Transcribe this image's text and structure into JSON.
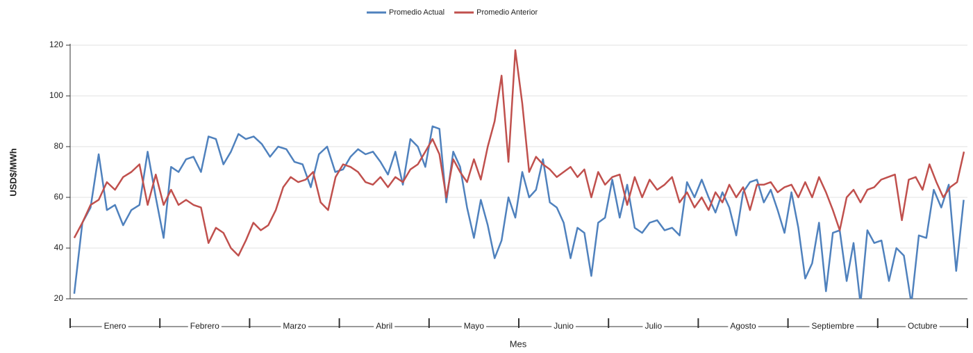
{
  "chart_data": {
    "type": "line",
    "x_label": "Mes",
    "y_label": "USD$/MWh",
    "categories": [
      "Enero",
      "Febrero",
      "Marzo",
      "Abril",
      "Mayo",
      "Junio",
      "Julio",
      "Agosto",
      "Septiembre",
      "Octubre"
    ],
    "ylim": [
      20,
      120
    ],
    "yticks": [
      20,
      40,
      60,
      80,
      100,
      120
    ],
    "grid": true,
    "legend": "top",
    "series": [
      {
        "name": "Promedio Actual",
        "color": "#4f81bd",
        "values": [
          [
            22,
            50,
            56,
            77,
            55,
            57,
            49,
            55,
            57,
            78,
            60
          ],
          [
            44,
            72,
            70,
            75,
            76,
            70,
            84,
            83,
            73,
            78,
            85,
            83
          ],
          [
            84,
            81,
            76,
            80,
            79,
            74,
            73,
            64,
            77,
            80,
            70
          ],
          [
            71,
            76,
            79,
            77,
            78,
            74,
            69,
            78,
            65,
            83,
            80,
            72
          ],
          [
            88,
            87,
            58,
            78,
            72,
            56,
            44,
            59,
            49,
            36,
            43,
            60,
            52
          ],
          [
            70,
            60,
            63,
            75,
            58,
            56,
            50,
            36,
            48,
            46,
            29,
            50,
            52
          ],
          [
            67,
            52,
            65,
            48,
            46,
            50,
            51,
            47,
            48,
            45,
            66,
            60
          ],
          [
            67,
            60,
            54,
            62,
            56,
            45,
            62,
            66,
            67,
            58,
            63,
            55,
            46
          ],
          [
            62,
            48,
            28,
            34,
            50,
            23,
            46,
            47,
            27,
            42,
            18,
            47,
            42
          ],
          [
            43,
            27,
            40,
            37,
            18,
            45,
            44,
            63,
            56,
            65,
            31,
            59
          ]
        ]
      },
      {
        "name": "Promedio Anterior",
        "color": "#c0504d",
        "values": [
          [
            44,
            50,
            57,
            59,
            66,
            63,
            68,
            70,
            73,
            57,
            69
          ],
          [
            57,
            63,
            57,
            59,
            57,
            56,
            42,
            48,
            46,
            40,
            37,
            43
          ],
          [
            50,
            47,
            49,
            55,
            64,
            68,
            66,
            67,
            70,
            58,
            55,
            68
          ],
          [
            73,
            72,
            70,
            66,
            65,
            68,
            64,
            68,
            66,
            71,
            73,
            78
          ],
          [
            83,
            77,
            60,
            75,
            70,
            66,
            75,
            67,
            80,
            90,
            108,
            74,
            118
          ],
          [
            97,
            70,
            76,
            73,
            71,
            68,
            70,
            72,
            68,
            71,
            60,
            70,
            65
          ],
          [
            68,
            69,
            57,
            68,
            60,
            67,
            63,
            65,
            68,
            58,
            62,
            56
          ],
          [
            60,
            55,
            62,
            58,
            65,
            60,
            64,
            55,
            65,
            65,
            66,
            62,
            64
          ],
          [
            65,
            60,
            66,
            60,
            68,
            62,
            55,
            47,
            60,
            63,
            58,
            63,
            64
          ],
          [
            67,
            68,
            69,
            51,
            67,
            68,
            63,
            73,
            66,
            60,
            64,
            66,
            78
          ]
        ]
      }
    ]
  }
}
